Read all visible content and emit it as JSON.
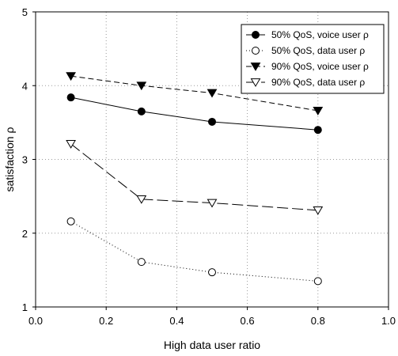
{
  "chart_data": {
    "type": "line",
    "title": "",
    "xlabel": "High data user ratio",
    "ylabel": "satisfaction ρ",
    "xlim": [
      0.0,
      1.0
    ],
    "ylim": [
      1,
      5
    ],
    "x_ticks": [
      "0.0",
      "0.2",
      "0.4",
      "0.6",
      "0.8",
      "1.0"
    ],
    "y_ticks": [
      "1",
      "2",
      "3",
      "4",
      "5"
    ],
    "grid": "dotted",
    "legend_position": "top-right",
    "x": [
      0.1,
      0.3,
      0.5,
      0.8
    ],
    "series": [
      {
        "name": "50% QoS,  voice user ρ",
        "values": [
          3.84,
          3.65,
          3.51,
          3.4
        ],
        "marker": "filled-circle",
        "line": "solid"
      },
      {
        "name": "50% QoS, data user ρ",
        "values": [
          2.16,
          1.61,
          1.47,
          1.35
        ],
        "marker": "open-circle",
        "line": "dotted"
      },
      {
        "name": "90% QoS, voice user ρ",
        "values": [
          4.13,
          4.0,
          3.9,
          3.66
        ],
        "marker": "filled-triangle-down",
        "line": "dashed"
      },
      {
        "name": "90% QoS, data user ρ",
        "values": [
          3.21,
          2.46,
          2.41,
          2.31
        ],
        "marker": "open-triangle-down",
        "line": "long-dash"
      }
    ]
  }
}
